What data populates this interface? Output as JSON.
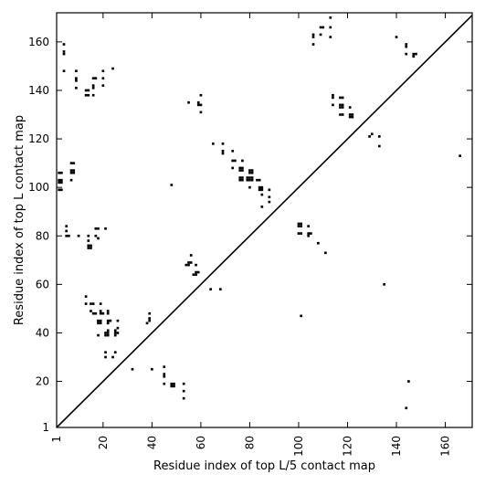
{
  "chart_data": {
    "type": "scatter",
    "xlabel": "Residue index of top L/5 contact map",
    "ylabel": "Residue index of top L contact map",
    "xlim": [
      1,
      171
    ],
    "ylim": [
      1,
      172
    ],
    "x_ticks": [
      1,
      20,
      40,
      60,
      80,
      100,
      120,
      140,
      160
    ],
    "y_ticks": [
      1,
      20,
      40,
      60,
      80,
      100,
      120,
      140,
      160
    ],
    "grid": false,
    "marker": "square",
    "marker_color": "#000000",
    "diagonal": {
      "from": [
        1,
        1
      ],
      "to": [
        171,
        171
      ]
    },
    "points": [
      [
        4,
        159
      ],
      [
        4,
        156
      ],
      [
        4,
        155
      ],
      [
        4,
        148
      ],
      [
        9,
        148
      ],
      [
        9,
        145
      ],
      [
        9,
        144
      ],
      [
        9,
        141
      ],
      [
        13,
        140
      ],
      [
        14,
        140
      ],
      [
        13,
        138
      ],
      [
        14,
        138
      ],
      [
        16,
        145
      ],
      [
        17,
        145
      ],
      [
        16,
        142
      ],
      [
        16,
        141
      ],
      [
        16,
        138
      ],
      [
        20,
        148
      ],
      [
        20,
        145
      ],
      [
        20,
        142
      ],
      [
        24,
        149
      ],
      [
        2,
        106
      ],
      [
        3,
        106
      ],
      [
        2,
        103
      ],
      [
        3,
        103
      ],
      [
        2,
        102
      ],
      [
        3,
        102
      ],
      [
        2,
        99
      ],
      [
        3,
        99
      ],
      [
        7,
        110
      ],
      [
        8,
        110
      ],
      [
        7,
        107
      ],
      [
        8,
        107
      ],
      [
        7,
        106
      ],
      [
        8,
        106
      ],
      [
        7,
        103
      ],
      [
        5,
        84
      ],
      [
        5,
        82
      ],
      [
        5,
        80
      ],
      [
        6,
        80
      ],
      [
        10,
        80
      ],
      [
        14,
        80
      ],
      [
        14,
        78
      ],
      [
        14,
        76
      ],
      [
        15,
        76
      ],
      [
        14,
        75
      ],
      [
        15,
        75
      ],
      [
        17,
        83
      ],
      [
        18,
        83
      ],
      [
        21,
        83
      ],
      [
        17,
        80
      ],
      [
        18,
        79
      ],
      [
        13,
        55
      ],
      [
        13,
        52
      ],
      [
        15,
        52
      ],
      [
        16,
        52
      ],
      [
        15,
        49
      ],
      [
        16,
        48
      ],
      [
        17,
        48
      ],
      [
        19,
        49
      ],
      [
        19,
        48
      ],
      [
        20,
        48
      ],
      [
        19,
        52
      ],
      [
        18,
        45
      ],
      [
        19,
        45
      ],
      [
        18,
        44
      ],
      [
        19,
        44
      ],
      [
        22,
        49
      ],
      [
        22,
        48
      ],
      [
        22,
        45
      ],
      [
        23,
        45
      ],
      [
        22,
        44
      ],
      [
        22,
        41
      ],
      [
        21,
        40
      ],
      [
        22,
        40
      ],
      [
        21,
        39
      ],
      [
        22,
        39
      ],
      [
        18,
        39
      ],
      [
        21,
        32
      ],
      [
        21,
        30
      ],
      [
        24,
        30
      ],
      [
        25,
        32
      ],
      [
        26,
        45
      ],
      [
        26,
        42
      ],
      [
        25,
        41
      ],
      [
        25,
        40
      ],
      [
        26,
        40
      ],
      [
        25,
        39
      ],
      [
        32,
        25
      ],
      [
        39,
        48
      ],
      [
        39,
        46
      ],
      [
        39,
        45
      ],
      [
        38,
        44
      ],
      [
        40,
        25
      ],
      [
        45,
        26
      ],
      [
        45,
        23
      ],
      [
        45,
        22
      ],
      [
        45,
        19
      ],
      [
        48,
        19
      ],
      [
        49,
        19
      ],
      [
        48,
        18
      ],
      [
        49,
        18
      ],
      [
        53,
        19
      ],
      [
        53,
        16
      ],
      [
        53,
        13
      ],
      [
        48,
        101
      ],
      [
        55,
        135
      ],
      [
        56,
        72
      ],
      [
        55,
        69
      ],
      [
        56,
        69
      ],
      [
        54,
        68
      ],
      [
        55,
        68
      ],
      [
        58,
        68
      ],
      [
        58,
        65
      ],
      [
        59,
        65
      ],
      [
        57,
        64
      ],
      [
        58,
        64
      ],
      [
        59,
        134
      ],
      [
        60,
        134
      ],
      [
        59,
        135
      ],
      [
        60,
        138
      ],
      [
        60,
        131
      ],
      [
        64,
        58
      ],
      [
        68,
        58
      ],
      [
        65,
        118
      ],
      [
        69,
        118
      ],
      [
        69,
        115
      ],
      [
        69,
        114
      ],
      [
        73,
        115
      ],
      [
        73,
        111
      ],
      [
        74,
        111
      ],
      [
        77,
        111
      ],
      [
        73,
        108
      ],
      [
        76,
        108
      ],
      [
        77,
        108
      ],
      [
        76,
        107
      ],
      [
        77,
        107
      ],
      [
        76,
        104
      ],
      [
        77,
        104
      ],
      [
        76,
        103
      ],
      [
        77,
        103
      ],
      [
        80,
        107
      ],
      [
        81,
        107
      ],
      [
        80,
        106
      ],
      [
        81,
        106
      ],
      [
        79,
        104
      ],
      [
        80,
        104
      ],
      [
        81,
        104
      ],
      [
        79,
        103
      ],
      [
        80,
        103
      ],
      [
        81,
        103
      ],
      [
        80,
        100
      ],
      [
        83,
        103
      ],
      [
        84,
        103
      ],
      [
        84,
        100
      ],
      [
        85,
        100
      ],
      [
        84,
        99
      ],
      [
        85,
        99
      ],
      [
        85,
        97
      ],
      [
        85,
        92
      ],
      [
        88,
        99
      ],
      [
        88,
        96
      ],
      [
        88,
        94
      ],
      [
        100,
        85
      ],
      [
        101,
        85
      ],
      [
        100,
        84
      ],
      [
        101,
        84
      ],
      [
        100,
        81
      ],
      [
        101,
        81
      ],
      [
        104,
        84
      ],
      [
        104,
        81
      ],
      [
        105,
        81
      ],
      [
        104,
        80
      ],
      [
        108,
        77
      ],
      [
        111,
        73
      ],
      [
        101,
        47
      ],
      [
        106,
        163
      ],
      [
        106,
        162
      ],
      [
        106,
        159
      ],
      [
        109,
        166
      ],
      [
        110,
        166
      ],
      [
        109,
        163
      ],
      [
        113,
        170
      ],
      [
        113,
        166
      ],
      [
        113,
        162
      ],
      [
        114,
        138
      ],
      [
        114,
        137
      ],
      [
        114,
        134
      ],
      [
        117,
        137
      ],
      [
        118,
        137
      ],
      [
        117,
        134
      ],
      [
        118,
        134
      ],
      [
        117,
        133
      ],
      [
        118,
        133
      ],
      [
        117,
        130
      ],
      [
        118,
        130
      ],
      [
        121,
        133
      ],
      [
        121,
        130
      ],
      [
        122,
        130
      ],
      [
        121,
        129
      ],
      [
        122,
        129
      ],
      [
        129,
        121
      ],
      [
        130,
        122
      ],
      [
        133,
        121
      ],
      [
        133,
        117
      ],
      [
        135,
        60
      ],
      [
        140,
        162
      ],
      [
        144,
        159
      ],
      [
        144,
        158
      ],
      [
        144,
        155
      ],
      [
        147,
        155
      ],
      [
        148,
        155
      ],
      [
        147,
        154
      ],
      [
        145,
        20
      ],
      [
        144,
        9
      ],
      [
        166,
        113
      ]
    ]
  }
}
